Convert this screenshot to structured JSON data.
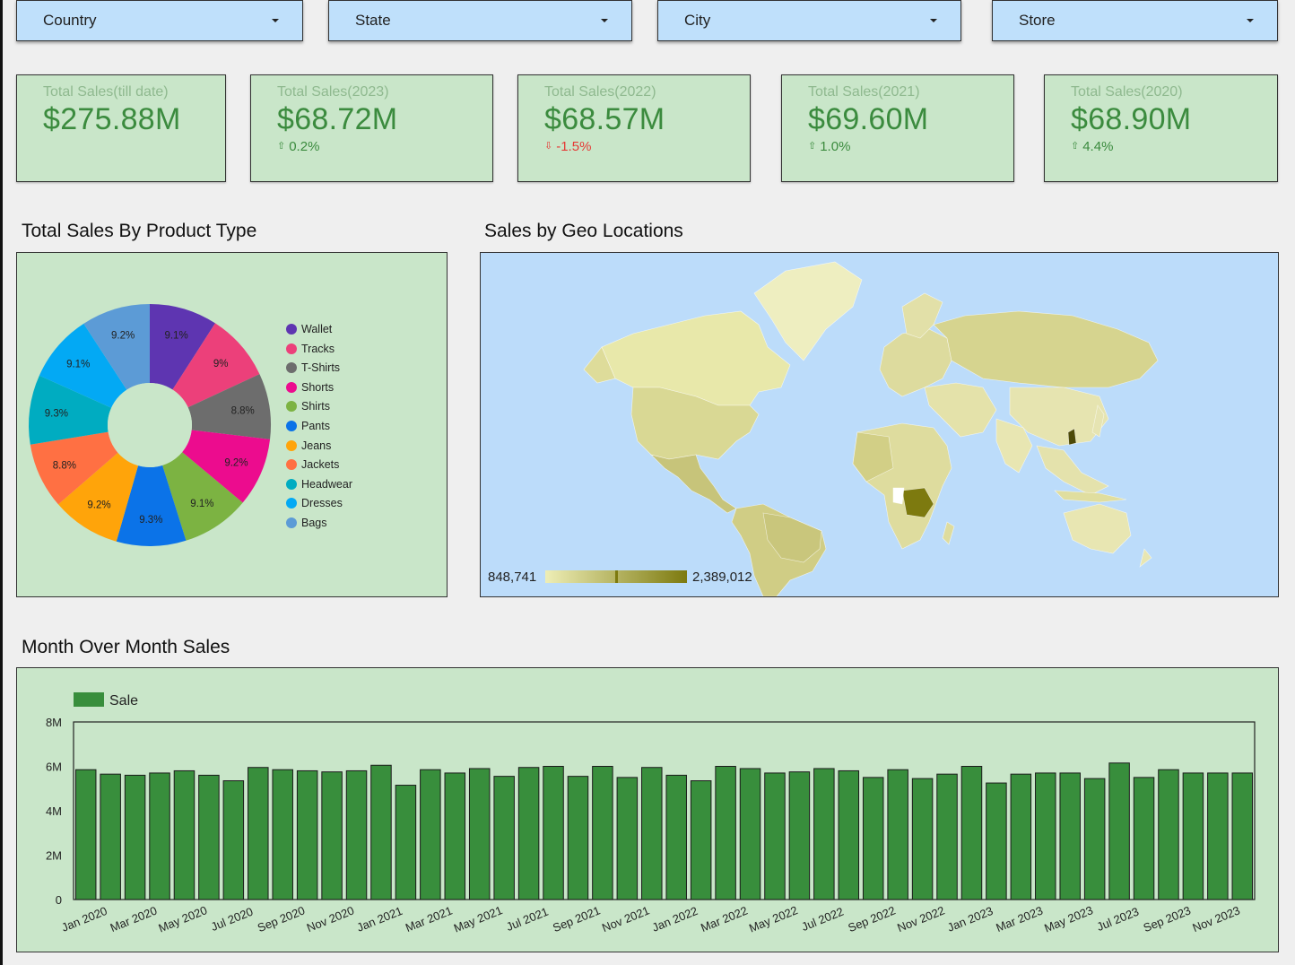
{
  "filters": [
    {
      "label": "Country"
    },
    {
      "label": "State"
    },
    {
      "label": "City"
    },
    {
      "label": "Store"
    }
  ],
  "kpis": [
    {
      "title": "Total Sales(till date)",
      "value": "$275.88M",
      "delta": "",
      "direction": ""
    },
    {
      "title": "Total Sales(2023)",
      "value": "$68.72M",
      "delta": "0.2%",
      "direction": "up"
    },
    {
      "title": "Total Sales(2022)",
      "value": "$68.57M",
      "delta": "-1.5%",
      "direction": "down"
    },
    {
      "title": "Total Sales(2021)",
      "value": "$69.60M",
      "delta": "1.0%",
      "direction": "up"
    },
    {
      "title": "Total Sales(2020)",
      "value": "$68.90M",
      "delta": "4.4%",
      "direction": "up"
    }
  ],
  "sections": {
    "product_type_title": "Total Sales By Product Type",
    "geo_title": "Sales by Geo Locations",
    "mom_title": "Month Over Month Sales"
  },
  "geo": {
    "scale_min": "848,741",
    "scale_max": "2,389,012",
    "color_low": "#eeeeb6",
    "color_high": "#7d7a0f"
  },
  "chart_data": [
    {
      "type": "pie",
      "title": "Total Sales By Product Type",
      "donut": true,
      "slices": [
        {
          "label": "Wallet",
          "percent": 9.1,
          "display": "9.1%",
          "color": "#5e35b1"
        },
        {
          "label": "Tracks",
          "percent": 9.0,
          "display": "9%",
          "color": "#ec407a"
        },
        {
          "label": "T-Shirts",
          "percent": 8.8,
          "display": "8.8%",
          "color": "#6d6d6d"
        },
        {
          "label": "Shorts",
          "percent": 9.2,
          "display": "9.2%",
          "color": "#ec0c8e"
        },
        {
          "label": "Shirts",
          "percent": 9.1,
          "display": "9.1%",
          "color": "#7cb342"
        },
        {
          "label": "Pants",
          "percent": 9.3,
          "display": "9.3%",
          "color": "#0b73e8"
        },
        {
          "label": "Jeans",
          "percent": 9.2,
          "display": "9.2%",
          "color": "#ffa40a"
        },
        {
          "label": "Jackets",
          "percent": 8.8,
          "display": "8.8%",
          "color": "#ff7043"
        },
        {
          "label": "Headwear",
          "percent": 9.3,
          "display": "9.3%",
          "color": "#00acc1"
        },
        {
          "label": "Dresses",
          "percent": 9.1,
          "display": "9.1%",
          "color": "#03a9f4"
        },
        {
          "label": "Bags",
          "percent": 9.2,
          "display": "9.2%",
          "color": "#5c9bd6"
        }
      ],
      "legend_position": "right"
    },
    {
      "type": "bar",
      "title": "Month Over Month Sales",
      "legend": "Sale",
      "legend_position": "top-left",
      "color": "#388e3c",
      "ylim": [
        0,
        8000000
      ],
      "yticks": [
        "0",
        "2M",
        "4M",
        "6M",
        "8M"
      ],
      "categories": [
        "Jan 2020",
        "Feb 2020",
        "Mar 2020",
        "Apr 2020",
        "May 2020",
        "Jun 2020",
        "Jul 2020",
        "Aug 2020",
        "Sep 2020",
        "Oct 2020",
        "Nov 2020",
        "Dec 2020",
        "Jan 2021",
        "Feb 2021",
        "Mar 2021",
        "Apr 2021",
        "May 2021",
        "Jun 2021",
        "Jul 2021",
        "Aug 2021",
        "Sep 2021",
        "Oct 2021",
        "Nov 2021",
        "Dec 2021",
        "Jan 2022",
        "Feb 2022",
        "Mar 2022",
        "Apr 2022",
        "May 2022",
        "Jun 2022",
        "Jul 2022",
        "Aug 2022",
        "Sep 2022",
        "Oct 2022",
        "Nov 2022",
        "Dec 2022",
        "Jan 2023",
        "Feb 2023",
        "Mar 2023",
        "Apr 2023",
        "May 2023",
        "Jun 2023",
        "Jul 2023",
        "Aug 2023",
        "Sep 2023",
        "Oct 2023",
        "Nov 2023",
        "Dec 2023"
      ],
      "xtick_labels": [
        "Jan 2020",
        "Mar 2020",
        "May 2020",
        "Jul 2020",
        "Sep 2020",
        "Nov 2020",
        "Jan 2021",
        "Mar 2021",
        "May 2021",
        "Jul 2021",
        "Sep 2021",
        "Nov 2021",
        "Jan 2022",
        "Mar 2022",
        "May 2022",
        "Jul 2022",
        "Sep 2022",
        "Nov 2022",
        "Jan 2023",
        "Mar 2023",
        "May 2023",
        "Jul 2023",
        "Sep 2023",
        "Nov 2023"
      ],
      "values": [
        5850000,
        5650000,
        5600000,
        5700000,
        5800000,
        5600000,
        5350000,
        5950000,
        5850000,
        5800000,
        5750000,
        5800000,
        6050000,
        5150000,
        5850000,
        5700000,
        5900000,
        5550000,
        5950000,
        6000000,
        5550000,
        6000000,
        5500000,
        5950000,
        5600000,
        5350000,
        6000000,
        5900000,
        5700000,
        5750000,
        5900000,
        5800000,
        5500000,
        5850000,
        5450000,
        5650000,
        6000000,
        5250000,
        5650000,
        5700000,
        5700000,
        5450000,
        6150000,
        5500000,
        5850000,
        5700000,
        5700000,
        5700000
      ]
    }
  ]
}
